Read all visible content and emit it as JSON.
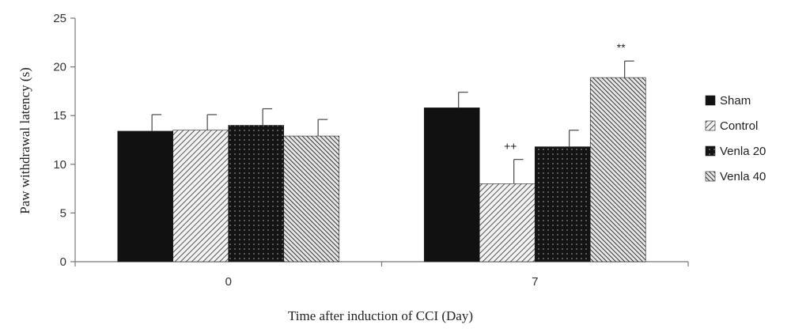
{
  "chart_data": {
    "type": "bar",
    "title": "",
    "xlabel": "Time after induction of CCI (Day)",
    "ylabel": "Paw withdrawal latency (s)",
    "ylim": [
      0,
      25
    ],
    "yticks": [
      0,
      5,
      10,
      15,
      20,
      25
    ],
    "categories": [
      "0",
      "7"
    ],
    "series": [
      {
        "name": "Sham",
        "values": [
          13.4,
          15.8
        ],
        "errors": [
          1.7,
          1.6
        ],
        "fill": "solid",
        "color": "#111111"
      },
      {
        "name": "Control",
        "values": [
          13.5,
          8.0
        ],
        "errors": [
          1.6,
          2.5
        ],
        "fill": "hatch-diagonal",
        "color": "#555555"
      },
      {
        "name": "Venla 20",
        "values": [
          14.0,
          11.8
        ],
        "errors": [
          1.7,
          1.7
        ],
        "fill": "dotted-dark",
        "color": "#111111"
      },
      {
        "name": "Venla 40",
        "values": [
          12.9,
          18.9
        ],
        "errors": [
          1.7,
          1.7
        ],
        "fill": "hatch-diagonal-dense",
        "color": "#444444"
      }
    ],
    "annotations": [
      {
        "category": "7",
        "series": "Control",
        "text": "++"
      },
      {
        "category": "7",
        "series": "Venla 40",
        "text": "**"
      }
    ],
    "legend": "right",
    "grid": false
  }
}
